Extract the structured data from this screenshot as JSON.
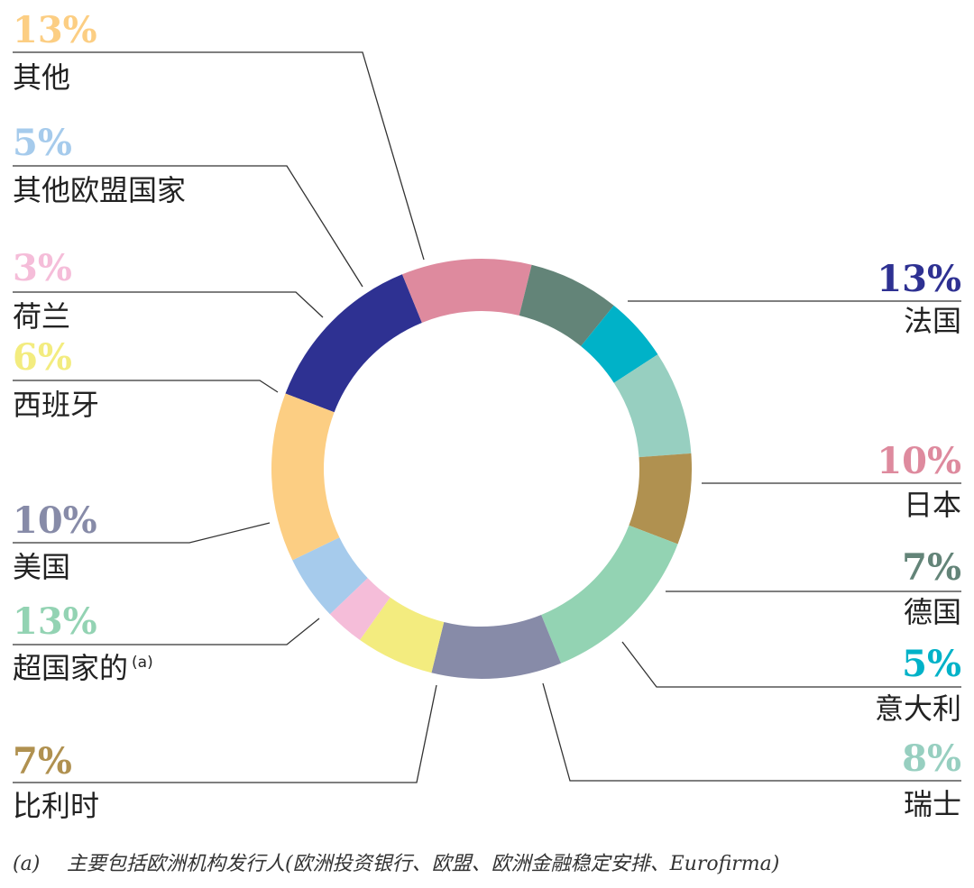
{
  "chart_data": {
    "type": "pie",
    "variant": "donut",
    "slices": [
      {
        "name": "法国",
        "value": 13,
        "label": "13%",
        "color": "#2e3192"
      },
      {
        "name": "日本",
        "value": 10,
        "label": "10%",
        "color": "#de8a9e"
      },
      {
        "name": "德国",
        "value": 7,
        "label": "7%",
        "color": "#638478"
      },
      {
        "name": "意大利",
        "value": 5,
        "label": "5%",
        "color": "#00b2c8"
      },
      {
        "name": "瑞士",
        "value": 8,
        "label": "8%",
        "color": "#97cfc0"
      },
      {
        "name": "比利时",
        "value": 7,
        "label": "7%",
        "color": "#b09150"
      },
      {
        "name": "超国家的",
        "value": 13,
        "label": "13%",
        "color": "#93d3b3",
        "footnote_ref": "(a)"
      },
      {
        "name": "美国",
        "value": 10,
        "label": "10%",
        "color": "#878ba8"
      },
      {
        "name": "西班牙",
        "value": 6,
        "label": "6%",
        "color": "#f3ec7f"
      },
      {
        "name": "荷兰",
        "value": 3,
        "label": "3%",
        "color": "#f5bdd9"
      },
      {
        "name": "其他欧盟国家",
        "value": 5,
        "label": "5%",
        "color": "#a6cbec"
      },
      {
        "name": "其他",
        "value": 13,
        "label": "13%",
        "color": "#fcce83"
      }
    ]
  },
  "footnote": {
    "mark": "(a)",
    "text": "主要包括欧洲机构发行人(欧洲投资银行、欧盟、欧洲金融稳定安排、Eurofirma)"
  }
}
